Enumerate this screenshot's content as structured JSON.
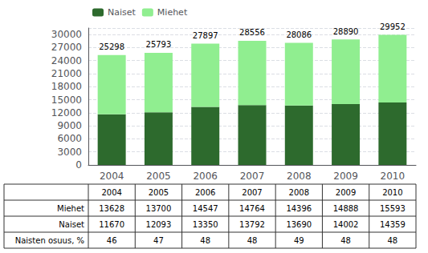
{
  "chart_data": {
    "type": "bar",
    "stacked": true,
    "categories": [
      "2004",
      "2005",
      "2006",
      "2007",
      "2008",
      "2009",
      "2010"
    ],
    "series": [
      {
        "name": "Naiset",
        "color": "#2d6a2d",
        "values": [
          11670,
          12093,
          13350,
          13792,
          13690,
          14002,
          14359
        ]
      },
      {
        "name": "Miehet",
        "color": "#90ee90",
        "values": [
          13628,
          13700,
          14547,
          14764,
          14396,
          14888,
          15593
        ]
      }
    ],
    "totals": [
      25298,
      25793,
      27897,
      28556,
      28086,
      28890,
      29952
    ],
    "ylim": [
      0,
      31500
    ],
    "yticks": [
      0,
      3000,
      6000,
      9000,
      12000,
      15000,
      18000,
      21000,
      24000,
      27000,
      30000
    ],
    "grid": true,
    "legend": "upper left",
    "table": {
      "rows": [
        {
          "label": "Miehet",
          "values": [
            13628,
            13700,
            14547,
            14764,
            14396,
            14888,
            15593
          ]
        },
        {
          "label": "Naiset",
          "values": [
            11670,
            12093,
            13350,
            13792,
            13690,
            14002,
            14359
          ]
        },
        {
          "label": "Naisten osuus, %",
          "values": [
            46,
            47,
            48,
            48,
            49,
            48,
            48
          ]
        }
      ]
    }
  }
}
